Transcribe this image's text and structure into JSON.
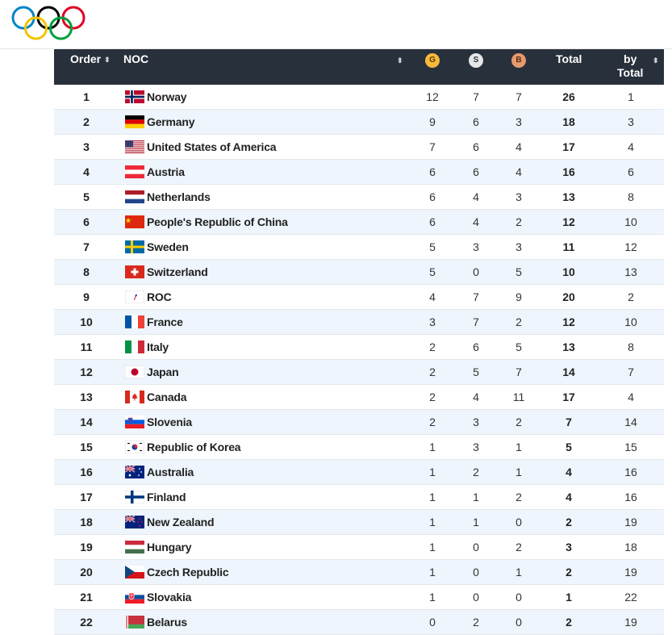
{
  "header": {
    "order": "Order",
    "noc": "NOC",
    "gold": "G",
    "silver": "S",
    "bronze": "B",
    "total": "Total",
    "by_total_line1": "by",
    "by_total_line2": "Total",
    "sort_glyph": "⬍"
  },
  "medal_colors": {
    "gold": "#f6b93b",
    "silver": "#e4e6e9",
    "bronze": "#e59a6e"
  },
  "rows": [
    {
      "order": "1",
      "noc": "Norway",
      "flag": "norway-flag-icon",
      "g": "12",
      "s": "7",
      "b": "7",
      "total": "26",
      "by_total": "1"
    },
    {
      "order": "2",
      "noc": "Germany",
      "flag": "germany-flag-icon",
      "g": "9",
      "s": "6",
      "b": "3",
      "total": "18",
      "by_total": "3"
    },
    {
      "order": "3",
      "noc": "United States of America",
      "flag": "usa-flag-icon",
      "g": "7",
      "s": "6",
      "b": "4",
      "total": "17",
      "by_total": "4"
    },
    {
      "order": "4",
      "noc": "Austria",
      "flag": "austria-flag-icon",
      "g": "6",
      "s": "6",
      "b": "4",
      "total": "16",
      "by_total": "6"
    },
    {
      "order": "5",
      "noc": "Netherlands",
      "flag": "netherlands-flag-icon",
      "g": "6",
      "s": "4",
      "b": "3",
      "total": "13",
      "by_total": "8"
    },
    {
      "order": "6",
      "noc": "People's Republic of China",
      "flag": "china-flag-icon",
      "g": "6",
      "s": "4",
      "b": "2",
      "total": "12",
      "by_total": "10"
    },
    {
      "order": "7",
      "noc": "Sweden",
      "flag": "sweden-flag-icon",
      "g": "5",
      "s": "3",
      "b": "3",
      "total": "11",
      "by_total": "12"
    },
    {
      "order": "8",
      "noc": "Switzerland",
      "flag": "switzerland-flag-icon",
      "g": "5",
      "s": "0",
      "b": "5",
      "total": "10",
      "by_total": "13"
    },
    {
      "order": "9",
      "noc": "ROC",
      "flag": "roc-flag-icon",
      "g": "4",
      "s": "7",
      "b": "9",
      "total": "20",
      "by_total": "2"
    },
    {
      "order": "10",
      "noc": "France",
      "flag": "france-flag-icon",
      "g": "3",
      "s": "7",
      "b": "2",
      "total": "12",
      "by_total": "10"
    },
    {
      "order": "11",
      "noc": "Italy",
      "flag": "italy-flag-icon",
      "g": "2",
      "s": "6",
      "b": "5",
      "total": "13",
      "by_total": "8"
    },
    {
      "order": "12",
      "noc": "Japan",
      "flag": "japan-flag-icon",
      "g": "2",
      "s": "5",
      "b": "7",
      "total": "14",
      "by_total": "7"
    },
    {
      "order": "13",
      "noc": "Canada",
      "flag": "canada-flag-icon",
      "g": "2",
      "s": "4",
      "b": "11",
      "total": "17",
      "by_total": "4"
    },
    {
      "order": "14",
      "noc": "Slovenia",
      "flag": "slovenia-flag-icon",
      "g": "2",
      "s": "3",
      "b": "2",
      "total": "7",
      "by_total": "14"
    },
    {
      "order": "15",
      "noc": "Republic of Korea",
      "flag": "korea-flag-icon",
      "g": "1",
      "s": "3",
      "b": "1",
      "total": "5",
      "by_total": "15"
    },
    {
      "order": "16",
      "noc": "Australia",
      "flag": "australia-flag-icon",
      "g": "1",
      "s": "2",
      "b": "1",
      "total": "4",
      "by_total": "16"
    },
    {
      "order": "17",
      "noc": "Finland",
      "flag": "finland-flag-icon",
      "g": "1",
      "s": "1",
      "b": "2",
      "total": "4",
      "by_total": "16"
    },
    {
      "order": "18",
      "noc": "New Zealand",
      "flag": "new-zealand-flag-icon",
      "g": "1",
      "s": "1",
      "b": "0",
      "total": "2",
      "by_total": "19"
    },
    {
      "order": "19",
      "noc": "Hungary",
      "flag": "hungary-flag-icon",
      "g": "1",
      "s": "0",
      "b": "2",
      "total": "3",
      "by_total": "18"
    },
    {
      "order": "20",
      "noc": "Czech Republic",
      "flag": "czech-flag-icon",
      "g": "1",
      "s": "0",
      "b": "1",
      "total": "2",
      "by_total": "19"
    },
    {
      "order": "21",
      "noc": "Slovakia",
      "flag": "slovakia-flag-icon",
      "g": "1",
      "s": "0",
      "b": "0",
      "total": "1",
      "by_total": "22"
    },
    {
      "order": "22",
      "noc": "Belarus",
      "flag": "belarus-flag-icon",
      "g": "0",
      "s": "2",
      "b": "0",
      "total": "2",
      "by_total": "19"
    }
  ]
}
